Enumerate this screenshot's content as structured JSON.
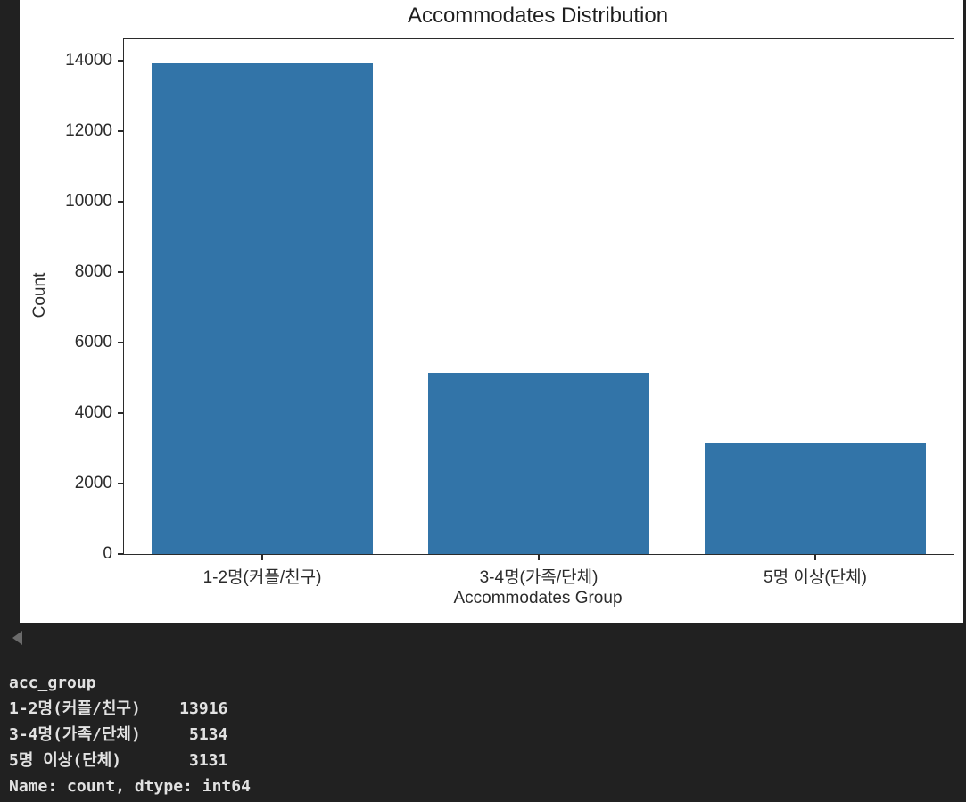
{
  "app": {
    "background_color": "#212121",
    "figure_background": "#ffffff"
  },
  "chart_data": {
    "type": "bar",
    "title": "Accommodates Distribution",
    "xlabel": "Accommodates Group",
    "ylabel": "Count",
    "categories": [
      "1-2명(커플/친구)",
      "3-4명(가족/단체)",
      "5명 이상(단체)"
    ],
    "values": [
      13916,
      5134,
      3131
    ],
    "ylim": [
      0,
      14612
    ],
    "yticks": [
      0,
      2000,
      4000,
      6000,
      8000,
      10000,
      12000,
      14000
    ],
    "bar_color": "#3274a8",
    "grid": false,
    "legend": "none"
  },
  "output_controls": {
    "collapse_button_icon": "collapse-left-triangle",
    "collapse_icon_color": "#6b6b6b"
  },
  "console_output": {
    "text_color": "#e2e2e2",
    "lines": [
      "acc_group",
      "1-2명(커플/친구)    13916",
      "3-4명(가족/단체)     5134",
      "5명 이상(단체)       3131",
      "Name: count, dtype: int64"
    ]
  }
}
